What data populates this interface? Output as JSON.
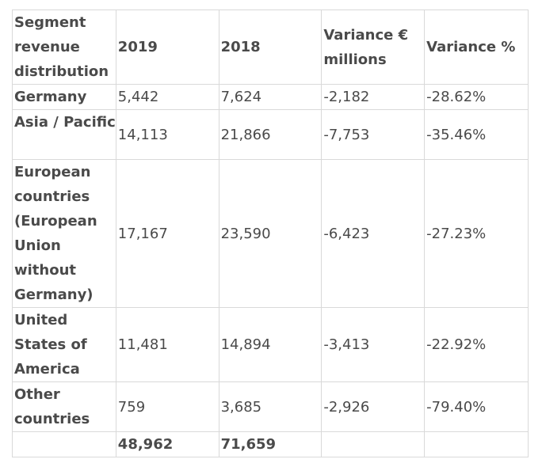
{
  "table": {
    "headers": [
      "Segment revenue distribution",
      "2019",
      "2018",
      "Variance € millions",
      "Variance %"
    ],
    "rows": [
      [
        "Germany",
        "5,442",
        "7,624",
        "-2,182",
        "-28.62%"
      ],
      [
        "Asia / Pacific",
        "14,113",
        "21,866",
        "-7,753",
        "-35.46%"
      ],
      [
        "European countries (European Union without Germany)",
        "17,167",
        "23,590",
        "-6,423",
        "-27.23%"
      ],
      [
        "United States of America",
        "11,481",
        "14,894",
        "-3,413",
        "-22.92%"
      ],
      [
        "Other countries",
        "759",
        "3,685",
        "-2,926",
        "-79.40%"
      ]
    ],
    "totals": [
      "",
      "48,962",
      "71,659",
      "",
      ""
    ]
  }
}
